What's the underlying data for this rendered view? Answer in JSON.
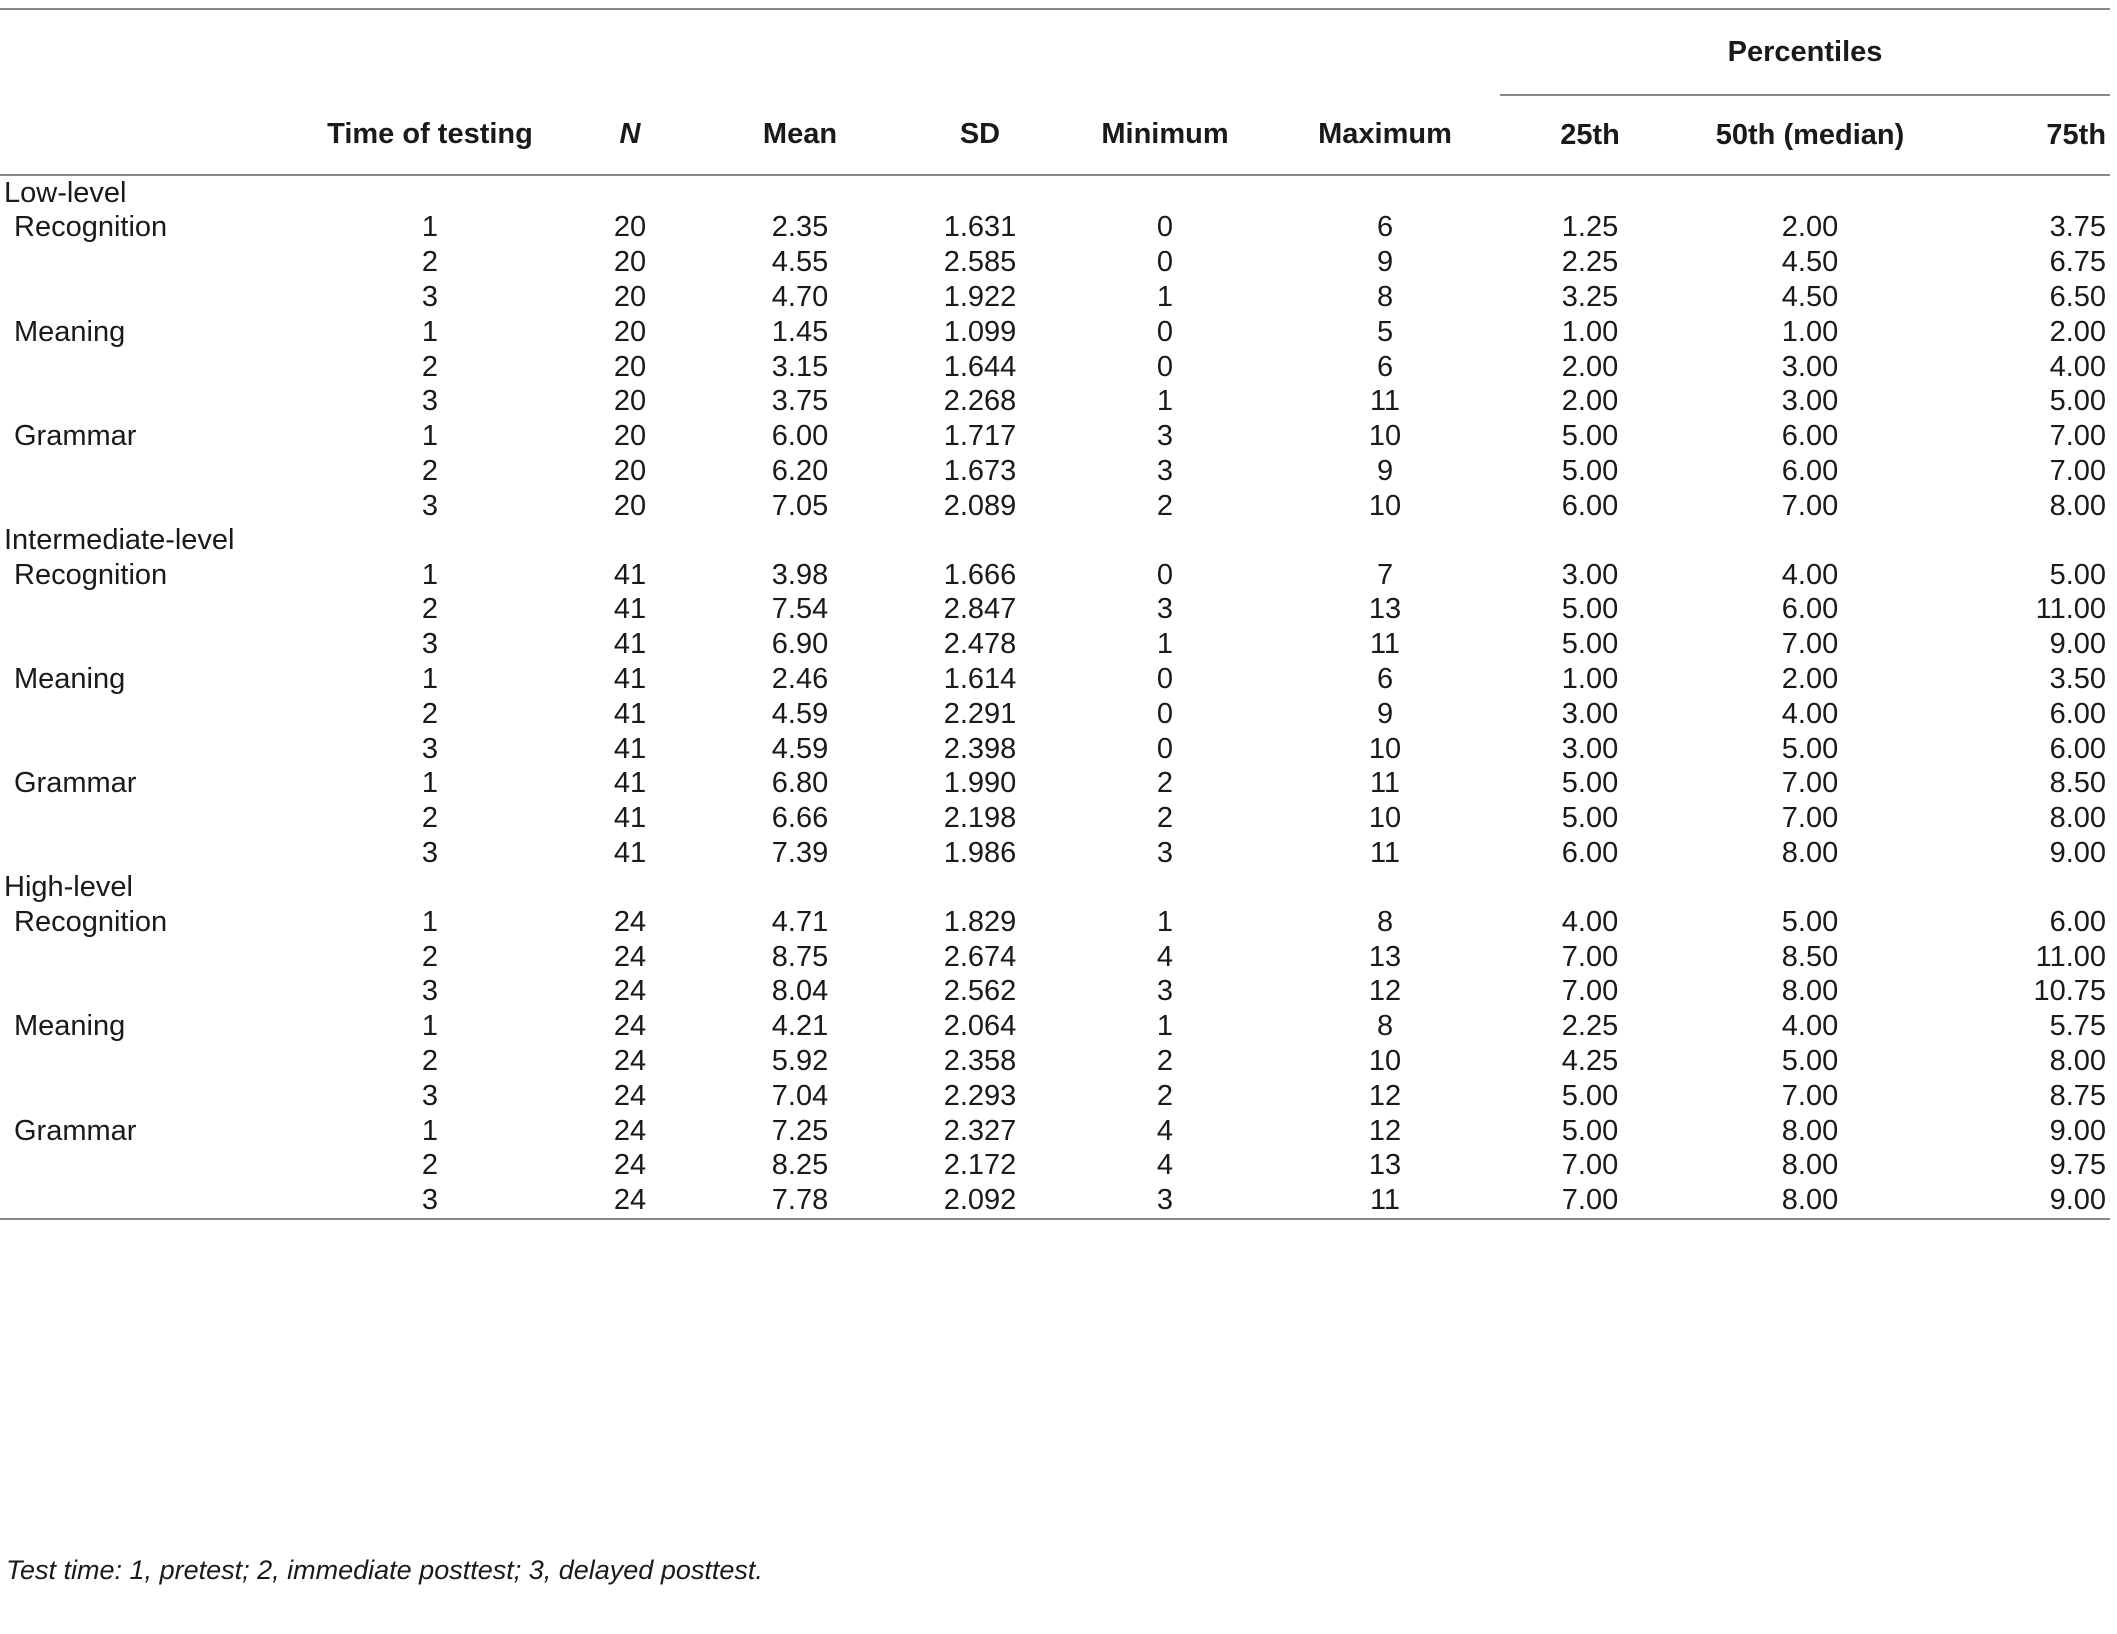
{
  "headers": {
    "time_of_testing": "Time of testing",
    "n": "N",
    "mean": "Mean",
    "sd": "SD",
    "minimum": "Minimum",
    "maximum": "Maximum",
    "percentiles": "Percentiles",
    "p25": "25th",
    "p50": "50th (median)",
    "p75": "75th"
  },
  "groups": [
    {
      "label": "Low-level",
      "measures": [
        {
          "label": "Recognition",
          "rows": [
            [
              "1",
              "20",
              "2.35",
              "1.631",
              "0",
              "6",
              "1.25",
              "2.00",
              "3.75"
            ],
            [
              "2",
              "20",
              "4.55",
              "2.585",
              "0",
              "9",
              "2.25",
              "4.50",
              "6.75"
            ],
            [
              "3",
              "20",
              "4.70",
              "1.922",
              "1",
              "8",
              "3.25",
              "4.50",
              "6.50"
            ]
          ]
        },
        {
          "label": "Meaning",
          "rows": [
            [
              "1",
              "20",
              "1.45",
              "1.099",
              "0",
              "5",
              "1.00",
              "1.00",
              "2.00"
            ],
            [
              "2",
              "20",
              "3.15",
              "1.644",
              "0",
              "6",
              "2.00",
              "3.00",
              "4.00"
            ],
            [
              "3",
              "20",
              "3.75",
              "2.268",
              "1",
              "11",
              "2.00",
              "3.00",
              "5.00"
            ]
          ]
        },
        {
          "label": "Grammar",
          "rows": [
            [
              "1",
              "20",
              "6.00",
              "1.717",
              "3",
              "10",
              "5.00",
              "6.00",
              "7.00"
            ],
            [
              "2",
              "20",
              "6.20",
              "1.673",
              "3",
              "9",
              "5.00",
              "6.00",
              "7.00"
            ],
            [
              "3",
              "20",
              "7.05",
              "2.089",
              "2",
              "10",
              "6.00",
              "7.00",
              "8.00"
            ]
          ]
        }
      ]
    },
    {
      "label": "Intermediate-level",
      "measures": [
        {
          "label": "Recognition",
          "rows": [
            [
              "1",
              "41",
              "3.98",
              "1.666",
              "0",
              "7",
              "3.00",
              "4.00",
              "5.00"
            ],
            [
              "2",
              "41",
              "7.54",
              "2.847",
              "3",
              "13",
              "5.00",
              "6.00",
              "11.00"
            ],
            [
              "3",
              "41",
              "6.90",
              "2.478",
              "1",
              "11",
              "5.00",
              "7.00",
              "9.00"
            ]
          ]
        },
        {
          "label": "Meaning",
          "rows": [
            [
              "1",
              "41",
              "2.46",
              "1.614",
              "0",
              "6",
              "1.00",
              "2.00",
              "3.50"
            ],
            [
              "2",
              "41",
              "4.59",
              "2.291",
              "0",
              "9",
              "3.00",
              "4.00",
              "6.00"
            ],
            [
              "3",
              "41",
              "4.59",
              "2.398",
              "0",
              "10",
              "3.00",
              "5.00",
              "6.00"
            ]
          ]
        },
        {
          "label": "Grammar",
          "rows": [
            [
              "1",
              "41",
              "6.80",
              "1.990",
              "2",
              "11",
              "5.00",
              "7.00",
              "8.50"
            ],
            [
              "2",
              "41",
              "6.66",
              "2.198",
              "2",
              "10",
              "5.00",
              "7.00",
              "8.00"
            ],
            [
              "3",
              "41",
              "7.39",
              "1.986",
              "3",
              "11",
              "6.00",
              "8.00",
              "9.00"
            ]
          ]
        }
      ]
    },
    {
      "label": "High-level",
      "measures": [
        {
          "label": "Recognition",
          "rows": [
            [
              "1",
              "24",
              "4.71",
              "1.829",
              "1",
              "8",
              "4.00",
              "5.00",
              "6.00"
            ],
            [
              "2",
              "24",
              "8.75",
              "2.674",
              "4",
              "13",
              "7.00",
              "8.50",
              "11.00"
            ],
            [
              "3",
              "24",
              "8.04",
              "2.562",
              "3",
              "12",
              "7.00",
              "8.00",
              "10.75"
            ]
          ]
        },
        {
          "label": "Meaning",
          "rows": [
            [
              "1",
              "24",
              "4.21",
              "2.064",
              "1",
              "8",
              "2.25",
              "4.00",
              "5.75"
            ],
            [
              "2",
              "24",
              "5.92",
              "2.358",
              "2",
              "10",
              "4.25",
              "5.00",
              "8.00"
            ],
            [
              "3",
              "24",
              "7.04",
              "2.293",
              "2",
              "12",
              "5.00",
              "7.00",
              "8.75"
            ]
          ]
        },
        {
          "label": "Grammar",
          "rows": [
            [
              "1",
              "24",
              "7.25",
              "2.327",
              "4",
              "12",
              "5.00",
              "8.00",
              "9.00"
            ],
            [
              "2",
              "24",
              "8.25",
              "2.172",
              "4",
              "13",
              "7.00",
              "8.00",
              "9.75"
            ],
            [
              "3",
              "24",
              "7.78",
              "2.092",
              "3",
              "11",
              "7.00",
              "8.00",
              "9.00"
            ]
          ]
        }
      ]
    }
  ],
  "note": "Test time: 1, pretest; 2, immediate posttest; 3, delayed posttest."
}
